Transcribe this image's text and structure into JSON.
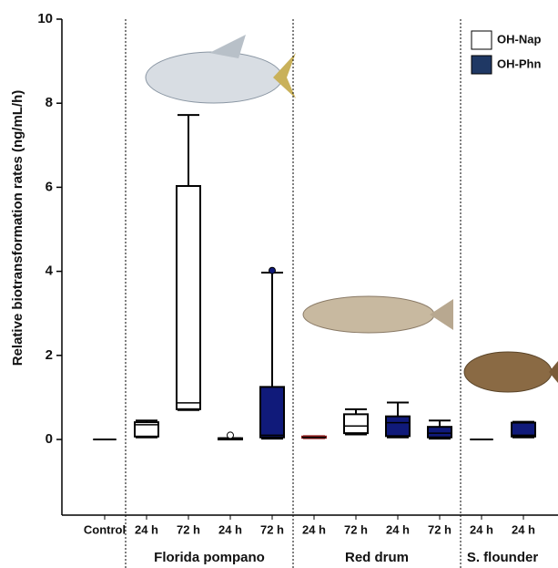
{
  "chart_data": {
    "type": "box",
    "ylabel": "Relative biotransformation rates (ng/mL/h)",
    "ylim": [
      -1.8,
      10
    ],
    "yticks": [
      0,
      2,
      4,
      6,
      8,
      10
    ],
    "legend": [
      {
        "name": "OH-Nap",
        "color": "#ffffff"
      },
      {
        "name": "OH-Phn",
        "color": "#1f3864"
      }
    ],
    "groups": [
      {
        "name": null,
        "categories": [
          "Control"
        ],
        "boxes": [
          {
            "min": 0,
            "q1": 0,
            "median": 0,
            "q3": 0,
            "max": 0,
            "outliers": [],
            "color": "#ffffff"
          }
        ]
      },
      {
        "name": "Florida pompano",
        "categories": [
          "24 h",
          "72 h",
          "24 h",
          "72 h"
        ],
        "boxes": [
          {
            "min": 0.05,
            "q1": 0.07,
            "median": 0.35,
            "q3": 0.41,
            "max": 0.45,
            "outliers": [],
            "color": "#ffffff"
          },
          {
            "min": 0.7,
            "q1": 0.72,
            "median": 0.87,
            "q3": 6.03,
            "max": 7.72,
            "outliers": [],
            "color": "#ffffff"
          },
          {
            "min": 0,
            "q1": 0,
            "median": 0.02,
            "q3": 0.03,
            "max": 0.03,
            "outliers": [
              0.1
            ],
            "color": "#ffffff"
          },
          {
            "min": 0.02,
            "q1": 0.05,
            "median": 0.1,
            "q3": 1.25,
            "max": 3.97,
            "outliers": [
              4.02
            ],
            "color": "#101a7a"
          }
        ]
      },
      {
        "name": "Red drum",
        "categories": [
          "24 h",
          "72 h",
          "24 h",
          "72 h"
        ],
        "boxes": [
          {
            "min": 0.03,
            "q1": 0.04,
            "median": 0.05,
            "q3": 0.07,
            "max": 0.08,
            "outliers": [],
            "color": "#8b1a1a"
          },
          {
            "min": 0.12,
            "q1": 0.15,
            "median": 0.32,
            "q3": 0.6,
            "max": 0.72,
            "outliers": [],
            "color": "#ffffff"
          },
          {
            "min": 0.05,
            "q1": 0.08,
            "median": 0.4,
            "q3": 0.55,
            "max": 0.88,
            "outliers": [],
            "color": "#101a7a"
          },
          {
            "min": 0.02,
            "q1": 0.05,
            "median": 0.15,
            "q3": 0.3,
            "max": 0.45,
            "outliers": [],
            "color": "#101a7a"
          }
        ]
      },
      {
        "name": "S. flounder",
        "categories": [
          "24 h",
          "24 h"
        ],
        "boxes": [
          {
            "min": 0,
            "q1": 0,
            "median": 0,
            "q3": 0,
            "max": 0,
            "outliers": [],
            "color": "#ffffff"
          },
          {
            "min": 0.05,
            "q1": 0.07,
            "median": 0.1,
            "q3": 0.4,
            "max": 0.42,
            "outliers": [],
            "color": "#101a7a"
          }
        ]
      }
    ]
  }
}
